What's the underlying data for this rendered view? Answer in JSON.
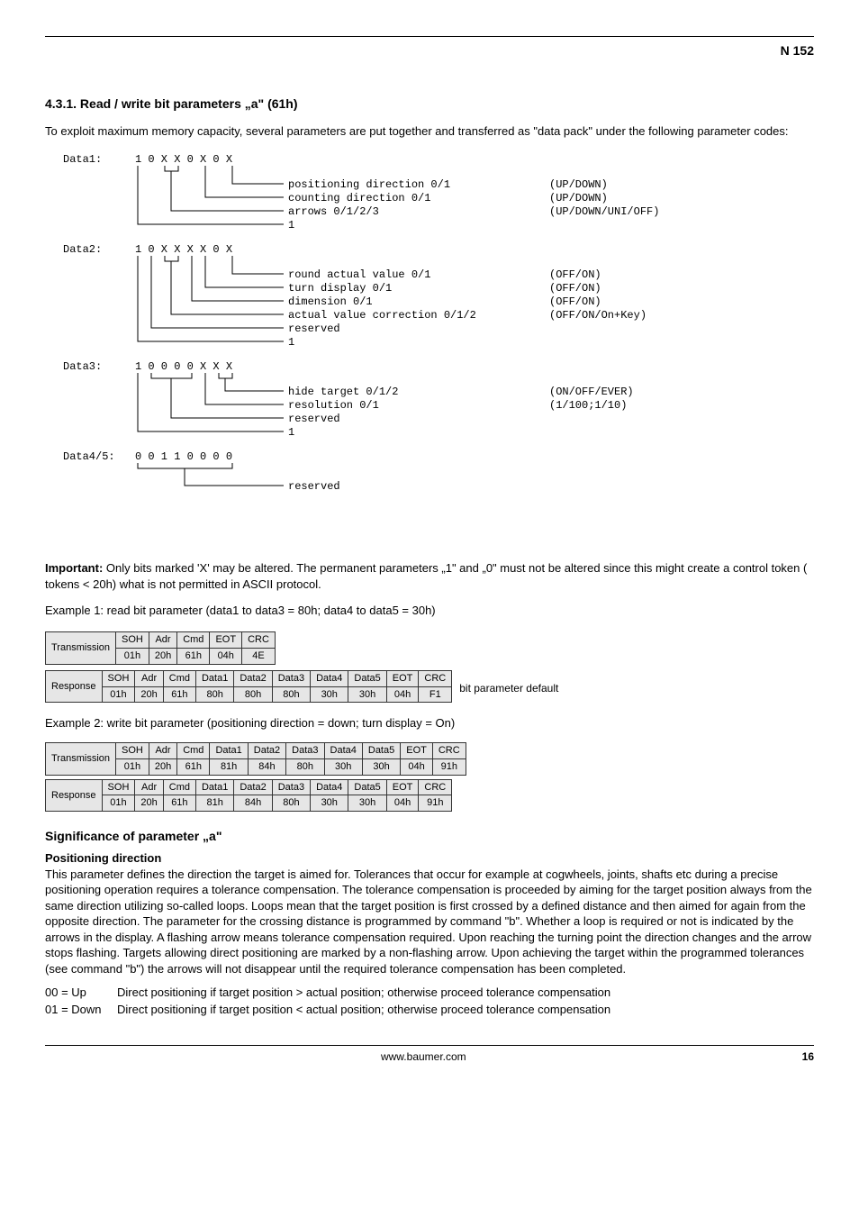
{
  "header": {
    "doc_id": "N 152"
  },
  "section": {
    "title": "4.3.1. Read / write bit parameters „a\" (61h)",
    "intro": "To exploit maximum memory capacity, several parameters are put together and transferred as \"data pack\" under the following parameter codes:"
  },
  "diagrams": {
    "data1": {
      "label": "Data1:",
      "bits": "1 0 X X 0 X 0 X",
      "lines": [
        {
          "text": "positioning direction 0/1",
          "opt": "(UP/DOWN)"
        },
        {
          "text": "counting direction    0/1",
          "opt": "(UP/DOWN)"
        },
        {
          "text": "arrows                0/1/2/3",
          "opt": "(UP/DOWN/UNI/OFF)"
        },
        {
          "text": "1",
          "opt": ""
        }
      ]
    },
    "data2": {
      "label": "Data2:",
      "bits": "1 0 X X X X 0 X",
      "lines": [
        {
          "text": "round actual value       0/1",
          "opt": "(OFF/ON)"
        },
        {
          "text": "turn display             0/1",
          "opt": "(OFF/ON)"
        },
        {
          "text": "dimension                0/1",
          "opt": "(OFF/ON)"
        },
        {
          "text": "actual value correction  0/1/2",
          "opt": "(OFF/ON/On+Key)"
        },
        {
          "text": "reserved",
          "opt": ""
        },
        {
          "text": "1",
          "opt": ""
        }
      ]
    },
    "data3": {
      "label": "Data3:",
      "bits": "1 0 0 0 0 X X X",
      "lines": [
        {
          "text": "hide target           0/1/2",
          "opt": "(ON/OFF/EVER)"
        },
        {
          "text": "resolution            0/1",
          "opt": "(1/100;1/10)"
        },
        {
          "text": "reserved",
          "opt": ""
        },
        {
          "text": "1",
          "opt": ""
        }
      ]
    },
    "data45": {
      "label": "Data4/5:",
      "bits": "0 0 1 1 0 0 0 0",
      "lines": [
        {
          "text": "reserved",
          "opt": ""
        }
      ]
    }
  },
  "important": "Important: Only bits marked 'X' may be altered. The permanent parameters „1\" and „0\" must not be altered since this might create a control token ( tokens < 20h)  what is not permitted in ASCII protocol.",
  "ex1": {
    "title": "Example 1: read bit parameter (data1 to data3 = 80h; data4 to data5 = 30h)",
    "tx_label": "Transmission",
    "tx_headers": [
      "SOH",
      "Adr",
      "Cmd",
      "EOT",
      "CRC"
    ],
    "tx_values": [
      "01h",
      "20h",
      "61h",
      "04h",
      "4E"
    ],
    "rx_label": "Response",
    "rx_headers": [
      "SOH",
      "Adr",
      "Cmd",
      "Data1",
      "Data2",
      "Data3",
      "Data4",
      "Data5",
      "EOT",
      "CRC"
    ],
    "rx_values": [
      "01h",
      "20h",
      "61h",
      "80h",
      "80h",
      "80h",
      "30h",
      "30h",
      "04h",
      "F1"
    ],
    "rx_bold": [
      false,
      false,
      false,
      true,
      true,
      true,
      true,
      true,
      false,
      false
    ],
    "note": "bit parameter default"
  },
  "ex2": {
    "title": "Example 2: write bit parameter (positioning direction = down; turn display = On)",
    "tx_label": "Transmission",
    "tx_headers": [
      "SOH",
      "Adr",
      "Cmd",
      "Data1",
      "Data2",
      "Data3",
      "Data4",
      "Data5",
      "EOT",
      "CRC"
    ],
    "tx_values": [
      "01h",
      "20h",
      "61h",
      "81h",
      "84h",
      "80h",
      "30h",
      "30h",
      "04h",
      "91h"
    ],
    "tx_bold": [
      false,
      false,
      false,
      true,
      true,
      true,
      true,
      true,
      false,
      false
    ],
    "rx_label": "Response",
    "rx_headers": [
      "SOH",
      "Adr",
      "Cmd",
      "Data1",
      "Data2",
      "Data3",
      "Data4",
      "Data5",
      "EOT",
      "CRC"
    ],
    "rx_values": [
      "01h",
      "20h",
      "61h",
      "81h",
      "84h",
      "80h",
      "30h",
      "30h",
      "04h",
      "91h"
    ],
    "rx_bold": [
      false,
      false,
      false,
      true,
      true,
      true,
      true,
      true,
      false,
      false
    ]
  },
  "sig": {
    "title": "Significance of parameter „a\"",
    "pd_title": "Positioning direction",
    "pd_body": "This parameter defines the direction the target is aimed for. Tolerances that occur for example at cogwheels, joints, shafts etc during a precise positioning operation requires a tolerance compensation. The tolerance compensation is proceeded by aiming for the target position always from the same direction utilizing so-called loops. Loops mean that the target position is first crossed by a defined distance and then aimed for again from the opposite direction. The parameter for the crossing distance is programmed by command \"b\". Whether a loop is required or not is indicated by the arrows in the display. A flashing arrow means tolerance compensation required. Upon reaching the turning point the direction changes and the arrow stops flashing. Targets allowing direct positioning are marked by a non-flashing arrow. Upon achieving the target within the programmed tolerances (see command \"b\") the arrows will not disappear until the required tolerance compensation has been completed.",
    "defs": [
      {
        "k": "00 = Up",
        "v": "Direct positioning if target position > actual position; otherwise proceed tolerance compensation"
      },
      {
        "k": "01 = Down",
        "v": "Direct positioning if target position < actual position; otherwise proceed tolerance compensation"
      }
    ]
  },
  "footer": {
    "url": "www.baumer.com",
    "page": "16"
  }
}
